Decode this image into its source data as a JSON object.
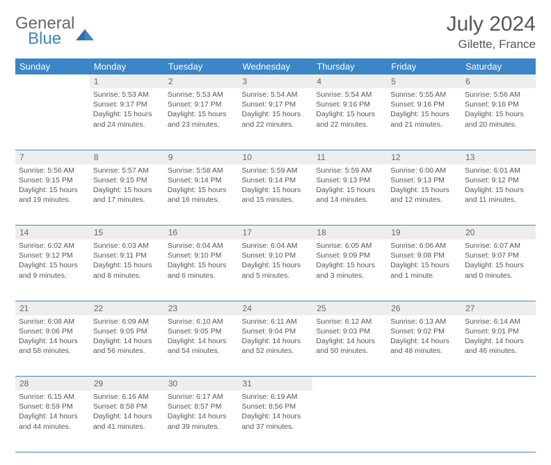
{
  "logo": {
    "line1": "General",
    "line2": "Blue"
  },
  "title": "July 2024",
  "location": "Gilette, France",
  "colors": {
    "header_bg": "#3b86c6",
    "header_fg": "#ffffff",
    "daynum_bg": "#eeeeee",
    "text": "#555555",
    "rule": "#3b86c6"
  },
  "day_headers": [
    "Sunday",
    "Monday",
    "Tuesday",
    "Wednesday",
    "Thursday",
    "Friday",
    "Saturday"
  ],
  "weeks": [
    {
      "nums": [
        "",
        "1",
        "2",
        "3",
        "4",
        "5",
        "6"
      ],
      "cells": [
        null,
        {
          "sunrise": "5:53 AM",
          "sunset": "9:17 PM",
          "daylight": "15 hours and 24 minutes."
        },
        {
          "sunrise": "5:53 AM",
          "sunset": "9:17 PM",
          "daylight": "15 hours and 23 minutes."
        },
        {
          "sunrise": "5:54 AM",
          "sunset": "9:17 PM",
          "daylight": "15 hours and 22 minutes."
        },
        {
          "sunrise": "5:54 AM",
          "sunset": "9:16 PM",
          "daylight": "15 hours and 22 minutes."
        },
        {
          "sunrise": "5:55 AM",
          "sunset": "9:16 PM",
          "daylight": "15 hours and 21 minutes."
        },
        {
          "sunrise": "5:56 AM",
          "sunset": "9:16 PM",
          "daylight": "15 hours and 20 minutes."
        }
      ]
    },
    {
      "nums": [
        "7",
        "8",
        "9",
        "10",
        "11",
        "12",
        "13"
      ],
      "cells": [
        {
          "sunrise": "5:56 AM",
          "sunset": "9:15 PM",
          "daylight": "15 hours and 19 minutes."
        },
        {
          "sunrise": "5:57 AM",
          "sunset": "9:15 PM",
          "daylight": "15 hours and 17 minutes."
        },
        {
          "sunrise": "5:58 AM",
          "sunset": "9:14 PM",
          "daylight": "15 hours and 16 minutes."
        },
        {
          "sunrise": "5:59 AM",
          "sunset": "9:14 PM",
          "daylight": "15 hours and 15 minutes."
        },
        {
          "sunrise": "5:59 AM",
          "sunset": "9:13 PM",
          "daylight": "15 hours and 14 minutes."
        },
        {
          "sunrise": "6:00 AM",
          "sunset": "9:13 PM",
          "daylight": "15 hours and 12 minutes."
        },
        {
          "sunrise": "6:01 AM",
          "sunset": "9:12 PM",
          "daylight": "15 hours and 11 minutes."
        }
      ]
    },
    {
      "nums": [
        "14",
        "15",
        "16",
        "17",
        "18",
        "19",
        "20"
      ],
      "cells": [
        {
          "sunrise": "6:02 AM",
          "sunset": "9:12 PM",
          "daylight": "15 hours and 9 minutes."
        },
        {
          "sunrise": "6:03 AM",
          "sunset": "9:11 PM",
          "daylight": "15 hours and 8 minutes."
        },
        {
          "sunrise": "6:04 AM",
          "sunset": "9:10 PM",
          "daylight": "15 hours and 6 minutes."
        },
        {
          "sunrise": "6:04 AM",
          "sunset": "9:10 PM",
          "daylight": "15 hours and 5 minutes."
        },
        {
          "sunrise": "6:05 AM",
          "sunset": "9:09 PM",
          "daylight": "15 hours and 3 minutes."
        },
        {
          "sunrise": "6:06 AM",
          "sunset": "9:08 PM",
          "daylight": "15 hours and 1 minute."
        },
        {
          "sunrise": "6:07 AM",
          "sunset": "9:07 PM",
          "daylight": "15 hours and 0 minutes."
        }
      ]
    },
    {
      "nums": [
        "21",
        "22",
        "23",
        "24",
        "25",
        "26",
        "27"
      ],
      "cells": [
        {
          "sunrise": "6:08 AM",
          "sunset": "9:06 PM",
          "daylight": "14 hours and 58 minutes."
        },
        {
          "sunrise": "6:09 AM",
          "sunset": "9:05 PM",
          "daylight": "14 hours and 56 minutes."
        },
        {
          "sunrise": "6:10 AM",
          "sunset": "9:05 PM",
          "daylight": "14 hours and 54 minutes."
        },
        {
          "sunrise": "6:11 AM",
          "sunset": "9:04 PM",
          "daylight": "14 hours and 52 minutes."
        },
        {
          "sunrise": "6:12 AM",
          "sunset": "9:03 PM",
          "daylight": "14 hours and 50 minutes."
        },
        {
          "sunrise": "6:13 AM",
          "sunset": "9:02 PM",
          "daylight": "14 hours and 48 minutes."
        },
        {
          "sunrise": "6:14 AM",
          "sunset": "9:01 PM",
          "daylight": "14 hours and 46 minutes."
        }
      ]
    },
    {
      "nums": [
        "28",
        "29",
        "30",
        "31",
        "",
        "",
        ""
      ],
      "cells": [
        {
          "sunrise": "6:15 AM",
          "sunset": "8:59 PM",
          "daylight": "14 hours and 44 minutes."
        },
        {
          "sunrise": "6:16 AM",
          "sunset": "8:58 PM",
          "daylight": "14 hours and 41 minutes."
        },
        {
          "sunrise": "6:17 AM",
          "sunset": "8:57 PM",
          "daylight": "14 hours and 39 minutes."
        },
        {
          "sunrise": "6:19 AM",
          "sunset": "8:56 PM",
          "daylight": "14 hours and 37 minutes."
        },
        null,
        null,
        null
      ]
    }
  ],
  "labels": {
    "sunrise": "Sunrise:",
    "sunset": "Sunset:",
    "daylight": "Daylight:"
  }
}
